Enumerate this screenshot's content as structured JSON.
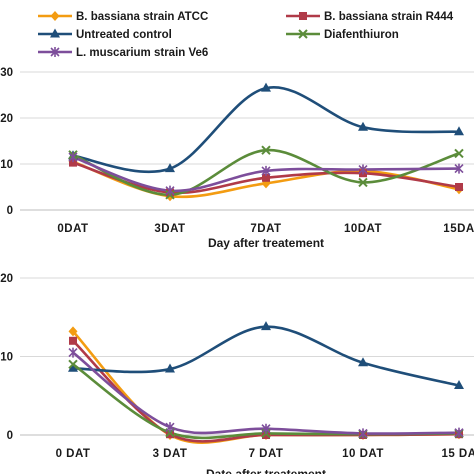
{
  "chart_data": [
    {
      "type": "line",
      "xlabel": "Day after treatement",
      "categories": [
        "0DAT",
        "3DAT",
        "7DAT",
        "10DAT",
        "15DA"
      ],
      "ytick_labels": [
        "0",
        "10",
        "20",
        "30"
      ],
      "ylim": [
        0,
        30
      ],
      "grid": true,
      "legend": "top",
      "series": [
        {
          "name": "B. bassiana strain ATCC",
          "color": "#f39c12",
          "marker": "diamond",
          "values": [
            10.5,
            3.0,
            5.8,
            8.5,
            4.5
          ]
        },
        {
          "name": "B. bassiana  strain R444",
          "color": "#b03a48",
          "marker": "square",
          "values": [
            10.3,
            3.8,
            7.0,
            8.0,
            5.0
          ]
        },
        {
          "name": "Untreated control",
          "color": "#1f4e79",
          "marker": "triangle",
          "values": [
            11.8,
            9.0,
            26.5,
            18.0,
            17.0
          ]
        },
        {
          "name": "Diafenthiuron",
          "color": "#5b8c3a",
          "marker": "x",
          "values": [
            12.0,
            3.3,
            13.0,
            6.0,
            12.3
          ]
        },
        {
          "name": "L. muscarium strain  Ve6",
          "color": "#7d4e9b",
          "marker": "star",
          "values": [
            11.5,
            4.2,
            8.5,
            8.8,
            9.0
          ]
        }
      ]
    },
    {
      "type": "line",
      "xlabel": "Date after treatement",
      "categories": [
        "0 DAT",
        "3 DAT",
        "7 DAT",
        "10 DAT",
        "15 DA"
      ],
      "ytick_labels": [
        "0",
        "10",
        "20"
      ],
      "ylim": [
        0,
        20
      ],
      "grid": true,
      "series": [
        {
          "color": "#f39c12",
          "marker": "diamond",
          "values": [
            13.2,
            0.0,
            0.0,
            0.0,
            0.1
          ]
        },
        {
          "color": "#b03a48",
          "marker": "square",
          "values": [
            12.0,
            0.1,
            0.0,
            0.0,
            0.1
          ]
        },
        {
          "color": "#1f4e79",
          "marker": "triangle",
          "values": [
            8.5,
            8.4,
            13.8,
            9.2,
            6.3
          ]
        },
        {
          "color": "#5b8c3a",
          "marker": "x",
          "values": [
            9.0,
            0.3,
            0.2,
            0.1,
            0.2
          ]
        },
        {
          "color": "#7d4e9b",
          "marker": "star",
          "values": [
            10.5,
            1.0,
            0.8,
            0.2,
            0.3
          ]
        }
      ]
    }
  ]
}
